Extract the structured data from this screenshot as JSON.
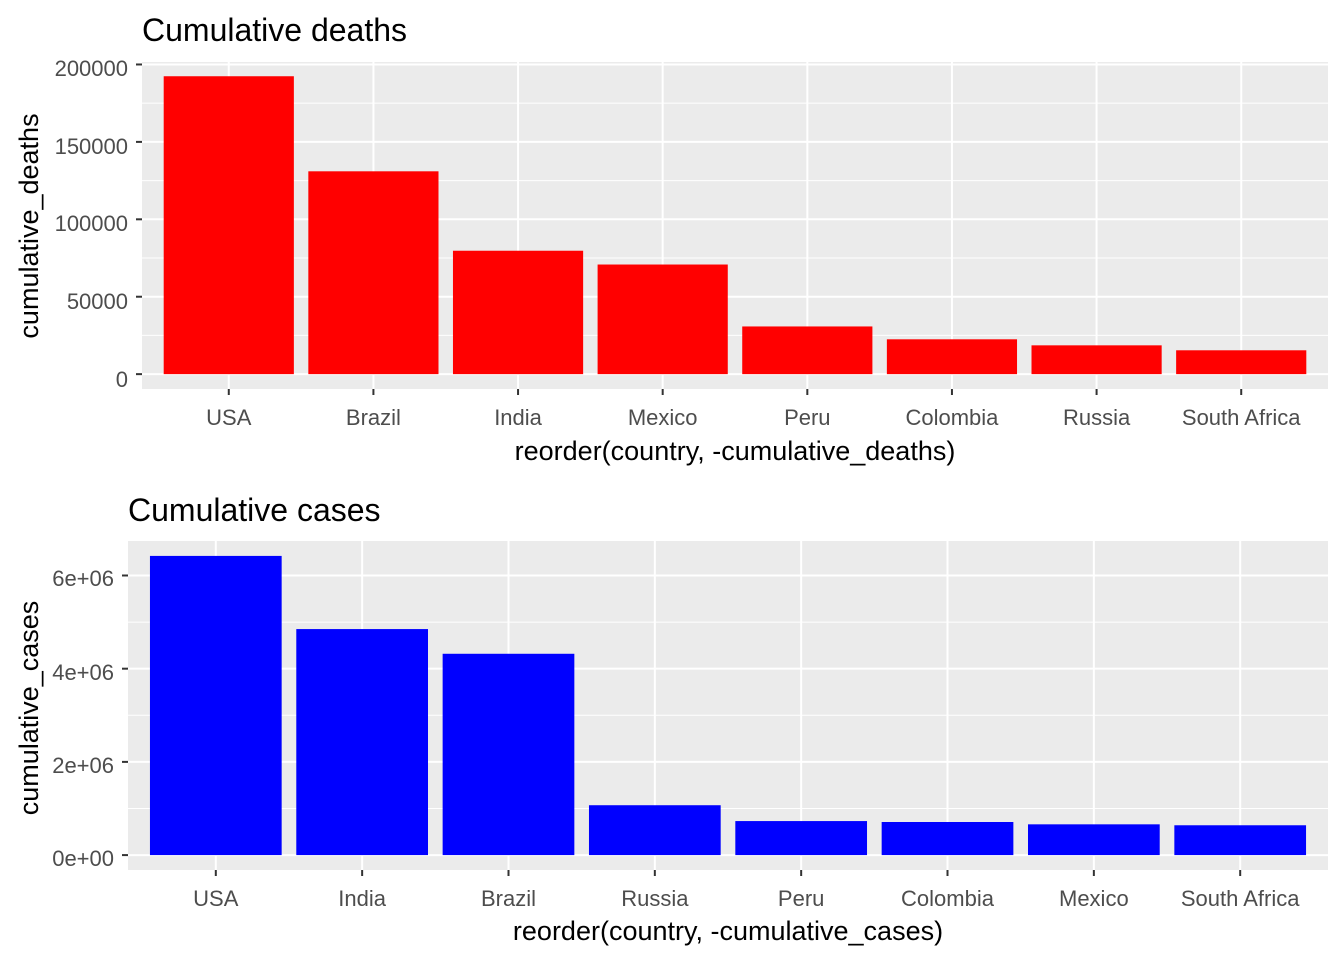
{
  "charts": [
    {
      "title": "Cumulative deaths",
      "xlabel": "reorder(country, -cumulative_deaths)",
      "ylabel": "cumulative_deaths",
      "bar_color": "#ff0000",
      "panel_color": "#ebebeb",
      "y_tick_labels": [
        "0",
        "50000",
        "100000",
        "150000",
        "200000"
      ]
    },
    {
      "title": "Cumulative cases",
      "xlabel": "reorder(country, -cumulative_cases)",
      "ylabel": "cumulative_cases",
      "bar_color": "#0000ff",
      "panel_color": "#ebebeb",
      "y_tick_labels": [
        "0e+00",
        "2e+06",
        "4e+06",
        "6e+06"
      ]
    }
  ],
  "chart_data": [
    {
      "type": "bar",
      "title": "Cumulative deaths",
      "xlabel": "reorder(country, -cumulative_deaths)",
      "ylabel": "cumulative_deaths",
      "categories": [
        "USA",
        "Brazil",
        "India",
        "Mexico",
        "Peru",
        "Colombia",
        "Russia",
        "South Africa"
      ],
      "values": [
        192400,
        131000,
        79700,
        70800,
        30800,
        22500,
        18600,
        15400
      ],
      "y_ticks": [
        0,
        50000,
        100000,
        150000,
        200000
      ],
      "ylim": [
        -9600,
        201600
      ],
      "grid": true,
      "legend": "none"
    },
    {
      "type": "bar",
      "title": "Cumulative cases",
      "xlabel": "reorder(country, -cumulative_cases)",
      "ylabel": "cumulative_cases",
      "categories": [
        "USA",
        "India",
        "Brazil",
        "Russia",
        "Peru",
        "Colombia",
        "Mexico",
        "South Africa"
      ],
      "values": [
        6420000,
        4850000,
        4320000,
        1070000,
        730000,
        710000,
        660000,
        640000
      ],
      "y_ticks": [
        0,
        2000000,
        4000000,
        6000000
      ],
      "ylim": [
        -320000,
        6740000
      ],
      "grid": true,
      "legend": "none"
    }
  ]
}
